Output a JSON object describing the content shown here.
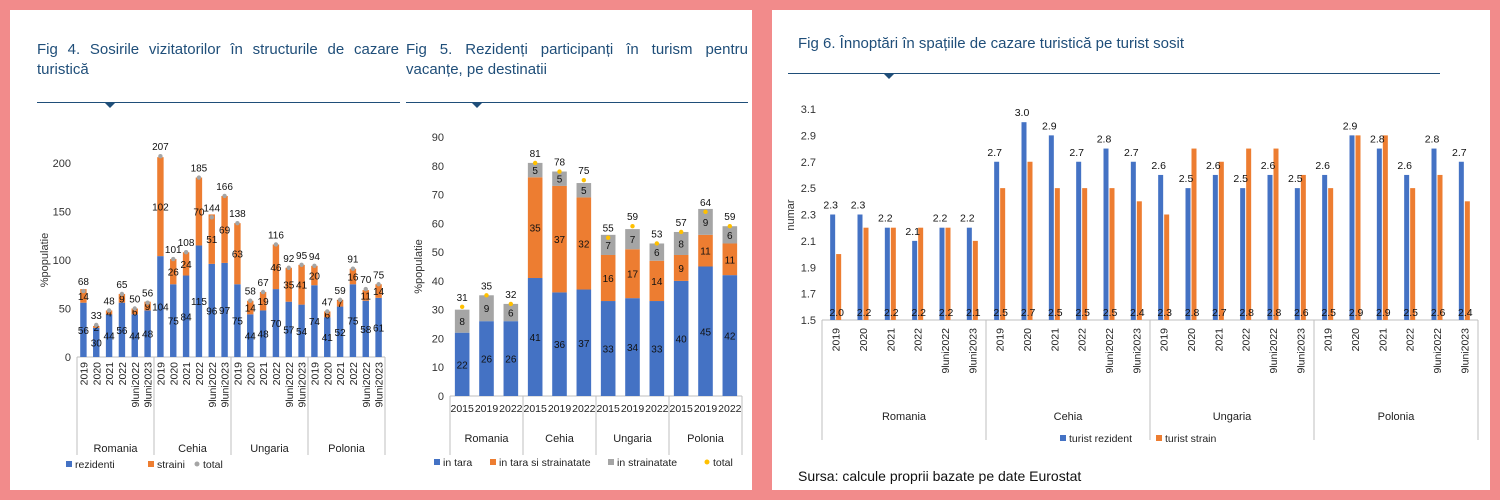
{
  "colors": {
    "resident": "#4472c4",
    "foreign": "#ed7d31",
    "gray": "#a5a5a5",
    "total": "#ffc000",
    "title": "#1f4e79"
  },
  "fig4": {
    "title": "Fig 4. Sosirile vizitatorilor în structurile de cazare turistică",
    "ylabel": "%populatie",
    "yticks": [
      "0",
      "50",
      "100",
      "150",
      "200"
    ],
    "legend": [
      "rezidenti",
      "straini",
      "total"
    ]
  },
  "fig5": {
    "title": "Fig 5. Rezidenți participanți în turism pentru vacanțe, pe destinatii",
    "ylabel": "%populatie",
    "yticks": [
      "0",
      "10",
      "20",
      "30",
      "40",
      "50",
      "60",
      "70",
      "80",
      "90"
    ],
    "legend": [
      "in tara",
      "in tara si strainatate",
      "in strainatate",
      "total"
    ]
  },
  "fig6": {
    "title": "Fig 6. Înnoptări în spațiile de cazare turistică pe turist sosit",
    "ylabel": "numar",
    "yticks": [
      "1.5",
      "1.7",
      "1.9",
      "2.1",
      "2.3",
      "2.5",
      "2.7",
      "2.9",
      "3.1"
    ],
    "legend": [
      "turist rezident",
      "turist strain"
    ]
  },
  "source": "Sursa: calcule proprii bazate pe date Eurostat",
  "chart_data": [
    {
      "type": "bar",
      "stacked": true,
      "title": "Fig 4. Sosirile vizitatorilor în structurile de cazare turistică",
      "ylabel": "%populatie",
      "ylim": [
        0,
        200
      ],
      "groups": [
        "Romania",
        "Cehia",
        "Ungaria",
        "Polonia"
      ],
      "categories": [
        "2019",
        "2020",
        "2021",
        "2022",
        "9luni2022",
        "9luni2023"
      ],
      "series": [
        {
          "name": "rezidenti",
          "values": [
            [
              56,
              30,
              44,
              56,
              44,
              48
            ],
            [
              104,
              75,
              84,
              115,
              96,
              97
            ],
            [
              75,
              44,
              48,
              70,
              57,
              54
            ],
            [
              74,
              41,
              52,
              75,
              58,
              61
            ]
          ]
        },
        {
          "name": "straini",
          "values": [
            [
              14,
              2,
              4,
              9,
              6,
              9
            ],
            [
              102,
              26,
              24,
              70,
              51,
              69
            ],
            [
              63,
              14,
              19,
              46,
              35,
              41
            ],
            [
              20,
              6,
              7,
              16,
              11,
              14
            ]
          ]
        },
        {
          "name": "total",
          "values": [
            [
              68,
              33,
              48,
              65,
              50,
              56
            ],
            [
              207,
              101,
              108,
              185,
              144,
              166
            ],
            [
              138,
              58,
              67,
              116,
              92,
              95
            ],
            [
              94,
              47,
              59,
              91,
              70,
              75
            ]
          ]
        }
      ]
    },
    {
      "type": "bar",
      "stacked": true,
      "title": "Fig 5. Rezidenți participanți în turism pentru vacanțe, pe destinatii",
      "ylabel": "%populatie",
      "ylim": [
        0,
        90
      ],
      "groups": [
        "Romania",
        "Cehia",
        "Ungaria",
        "Polonia"
      ],
      "categories": [
        "2015",
        "2019",
        "2022"
      ],
      "series": [
        {
          "name": "in tara",
          "values": [
            [
              22,
              26,
              26
            ],
            [
              41,
              36,
              37
            ],
            [
              33,
              34,
              33
            ],
            [
              40,
              45,
              42
            ]
          ]
        },
        {
          "name": "in tara si strainatate",
          "values": [
            [
              0,
              0,
              0
            ],
            [
              35,
              37,
              32
            ],
            [
              16,
              17,
              14
            ],
            [
              9,
              11,
              11
            ]
          ]
        },
        {
          "name": "in strainatate",
          "values": [
            [
              8,
              9,
              6
            ],
            [
              5,
              5,
              5
            ],
            [
              7,
              7,
              6
            ],
            [
              8,
              9,
              6
            ]
          ]
        },
        {
          "name": "total",
          "values": [
            [
              31,
              35,
              32
            ],
            [
              81,
              78,
              75
            ],
            [
              55,
              59,
              53
            ],
            [
              57,
              64,
              59
            ]
          ]
        }
      ]
    },
    {
      "type": "bar",
      "title": "Fig 6. Înnoptări în spațiile de cazare turistică pe turist sosit",
      "ylabel": "numar",
      "ylim": [
        1.5,
        3.1
      ],
      "groups": [
        "Romania",
        "Cehia",
        "Ungaria",
        "Polonia"
      ],
      "categories": [
        "2019",
        "2020",
        "2021",
        "2022",
        "9luni2022",
        "9luni2023"
      ],
      "series": [
        {
          "name": "turist rezident",
          "values": [
            [
              2.3,
              2.3,
              2.2,
              2.1,
              2.2,
              2.2
            ],
            [
              2.7,
              3.0,
              2.9,
              2.7,
              2.8,
              2.7
            ],
            [
              2.6,
              2.5,
              2.6,
              2.5,
              2.6,
              2.5
            ],
            [
              2.6,
              2.9,
              2.8,
              2.6,
              2.8,
              2.7
            ]
          ]
        },
        {
          "name": "turist strain",
          "values": [
            [
              2.0,
              2.2,
              2.2,
              2.2,
              2.2,
              2.1
            ],
            [
              2.5,
              2.7,
              2.5,
              2.5,
              2.5,
              2.4
            ],
            [
              2.3,
              2.8,
              2.7,
              2.8,
              2.8,
              2.6
            ],
            [
              2.5,
              2.9,
              2.9,
              2.5,
              2.6,
              2.4
            ]
          ]
        }
      ]
    }
  ]
}
